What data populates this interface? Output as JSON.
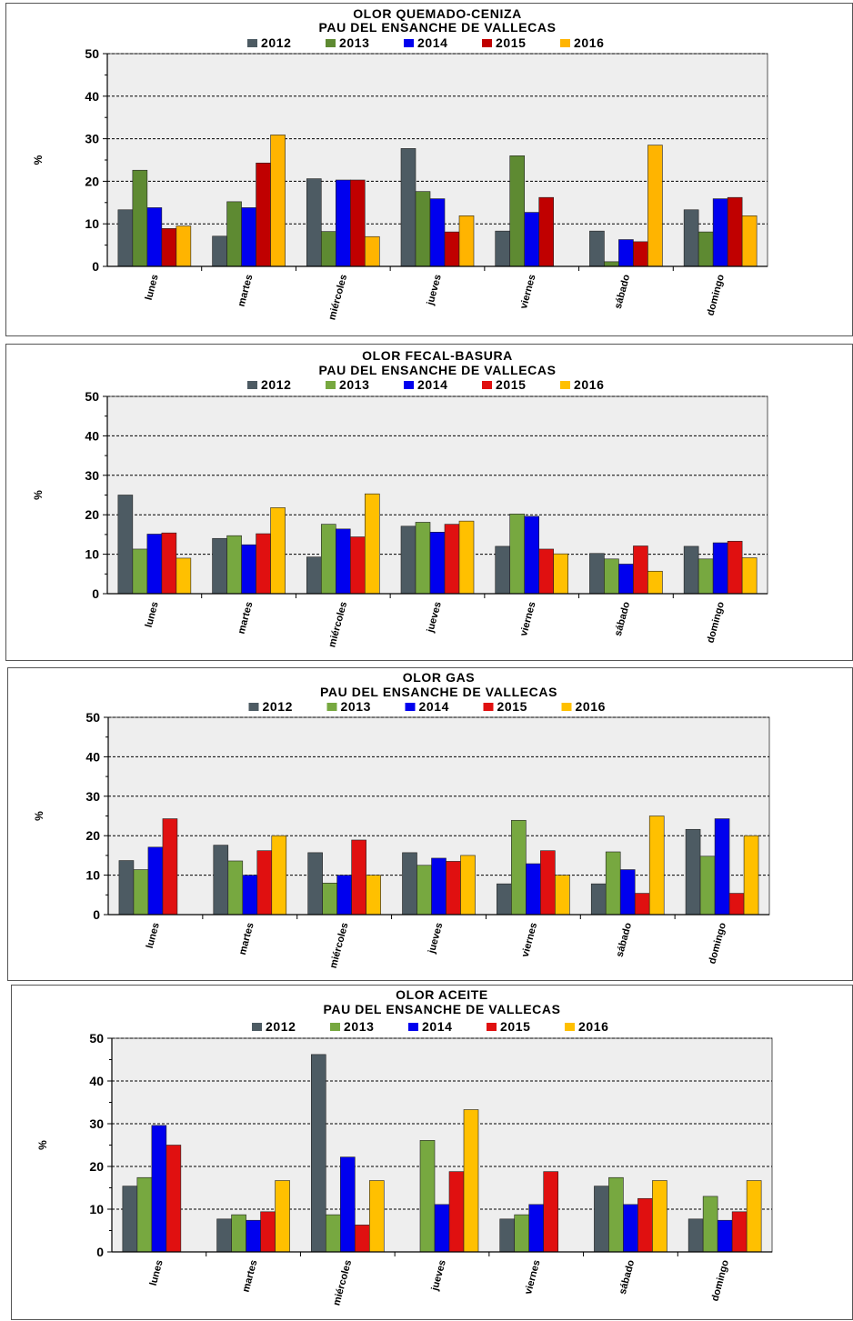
{
  "chart_data": [
    {
      "type": "bar",
      "title": "OLOR QUEMADO-CENIZA",
      "subtitle": "PAU DEL ENSANCHE DE VALLECAS",
      "ylabel": "%",
      "ylim": [
        0,
        50
      ],
      "yticks": [
        0,
        10,
        20,
        30,
        40,
        50
      ],
      "grid": true,
      "legend_position": "top",
      "categories": [
        "lunes",
        "martes",
        "miércoles",
        "jueves",
        "viernes",
        "sábado",
        "domingo"
      ],
      "series": [
        {
          "name": "2012",
          "color": "#4d5b63",
          "values": [
            13.3,
            7.1,
            20.6,
            27.7,
            8.3,
            8.3,
            13.3
          ]
        },
        {
          "name": "2013",
          "color": "#5e8a32",
          "values": [
            22.6,
            15.2,
            8.2,
            17.6,
            26.0,
            1.1,
            8.1
          ]
        },
        {
          "name": "2014",
          "color": "#0000ee",
          "values": [
            13.8,
            13.8,
            20.3,
            15.9,
            12.7,
            6.3,
            15.9
          ]
        },
        {
          "name": "2015",
          "color": "#c00000",
          "values": [
            8.9,
            24.3,
            20.3,
            8.1,
            16.2,
            5.8,
            16.2
          ]
        },
        {
          "name": "2016",
          "color": "#ffb400",
          "values": [
            9.5,
            30.9,
            7.0,
            11.9,
            0,
            28.5,
            11.9
          ]
        }
      ]
    },
    {
      "type": "bar",
      "title": "OLOR FECAL-BASURA",
      "subtitle": "PAU DEL ENSANCHE DE VALLECAS",
      "ylabel": "%",
      "ylim": [
        0,
        50
      ],
      "yticks": [
        0,
        10,
        20,
        30,
        40,
        50
      ],
      "grid": true,
      "legend_position": "top",
      "categories": [
        "lunes",
        "martes",
        "miércoles",
        "jueves",
        "viernes",
        "sábado",
        "domingo"
      ],
      "series": [
        {
          "name": "2012",
          "color": "#4d5b63",
          "values": [
            25.0,
            14.0,
            9.3,
            17.1,
            12.0,
            10.2,
            12.0
          ]
        },
        {
          "name": "2013",
          "color": "#77a840",
          "values": [
            11.3,
            14.7,
            17.6,
            18.1,
            20.2,
            8.8,
            8.8
          ]
        },
        {
          "name": "2014",
          "color": "#0000ee",
          "values": [
            15.1,
            12.4,
            16.4,
            15.6,
            19.6,
            7.5,
            12.9
          ]
        },
        {
          "name": "2015",
          "color": "#e01010",
          "values": [
            15.4,
            15.2,
            14.4,
            17.6,
            11.3,
            12.1,
            13.3
          ]
        },
        {
          "name": "2016",
          "color": "#ffc000",
          "values": [
            9.0,
            21.8,
            25.3,
            18.4,
            10.1,
            5.7,
            9.1
          ]
        }
      ]
    },
    {
      "type": "bar",
      "title": "OLOR GAS",
      "subtitle": "PAU DEL ENSANCHE DE VALLECAS",
      "ylabel": "%",
      "ylim": [
        0,
        50
      ],
      "yticks": [
        0,
        10,
        20,
        30,
        40,
        50
      ],
      "grid": true,
      "legend_position": "top",
      "categories": [
        "lunes",
        "martes",
        "miércoles",
        "jueves",
        "viernes",
        "sábado",
        "domingo"
      ],
      "series": [
        {
          "name": "2012",
          "color": "#4d5b63",
          "values": [
            13.7,
            17.6,
            15.7,
            15.7,
            7.8,
            7.8,
            21.6
          ]
        },
        {
          "name": "2013",
          "color": "#77a840",
          "values": [
            11.4,
            13.6,
            8.0,
            12.5,
            23.9,
            15.9,
            14.8
          ]
        },
        {
          "name": "2014",
          "color": "#0000ee",
          "values": [
            17.1,
            10.0,
            10.0,
            14.3,
            12.9,
            11.4,
            24.3
          ]
        },
        {
          "name": "2015",
          "color": "#e01010",
          "values": [
            24.3,
            16.2,
            18.9,
            13.5,
            16.2,
            5.4,
            5.4
          ]
        },
        {
          "name": "2016",
          "color": "#ffc000",
          "values": [
            0,
            20.0,
            10.0,
            15.0,
            10.0,
            25.0,
            20.0
          ]
        }
      ]
    },
    {
      "type": "bar",
      "title": "OLOR ACEITE",
      "subtitle": "PAU DEL ENSANCHE DE VALLECAS",
      "ylabel": "%",
      "ylim": [
        0,
        50
      ],
      "yticks": [
        0,
        10,
        20,
        30,
        40,
        50
      ],
      "grid": true,
      "legend_position": "top",
      "categories": [
        "lunes",
        "martes",
        "miércoles",
        "jueves",
        "viernes",
        "sábado",
        "domingo"
      ],
      "series": [
        {
          "name": "2012",
          "color": "#4d5b63",
          "values": [
            15.4,
            7.7,
            46.2,
            0,
            7.7,
            15.4,
            7.7
          ]
        },
        {
          "name": "2013",
          "color": "#77a840",
          "values": [
            17.4,
            8.7,
            8.7,
            26.1,
            8.7,
            17.4,
            13.0
          ]
        },
        {
          "name": "2014",
          "color": "#0000ee",
          "values": [
            29.6,
            7.4,
            22.2,
            11.1,
            11.1,
            11.1,
            7.4
          ]
        },
        {
          "name": "2015",
          "color": "#e01010",
          "values": [
            25.0,
            9.4,
            6.3,
            18.8,
            18.8,
            12.5,
            9.4
          ]
        },
        {
          "name": "2016",
          "color": "#ffc000",
          "values": [
            0,
            16.7,
            16.7,
            33.3,
            0,
            16.7,
            16.7
          ]
        }
      ]
    }
  ]
}
